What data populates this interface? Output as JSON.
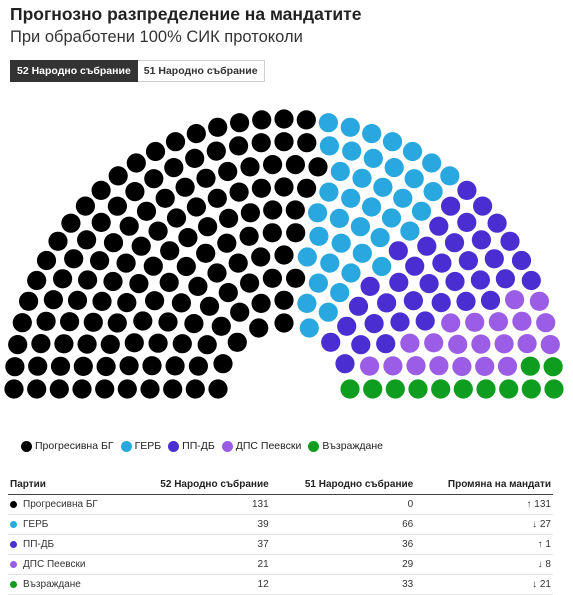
{
  "title": "Прогнозно разпределение на мандатите",
  "subtitle": "При обработени 100% СИК протоколи",
  "tabs": [
    {
      "label": "52 Народно събрание",
      "active": true
    },
    {
      "label": "51 Народно събрание",
      "active": false
    }
  ],
  "table": {
    "headers": [
      "Партии",
      "52 Народно събрание",
      "51 Народно събрание",
      "Промяна на мандати"
    ]
  },
  "chart_data": {
    "type": "hemicycle",
    "total_seats": 240,
    "series": [
      {
        "name": "Прогресивна БГ",
        "color": "#000000",
        "seats_52": 131,
        "seats_51": 0,
        "change": "↑ 131",
        "direction": "up"
      },
      {
        "name": "ГЕРБ",
        "color": "#29a8e0",
        "seats_52": 39,
        "seats_51": 66,
        "change": "↓ 27",
        "direction": "down"
      },
      {
        "name": "ПП-ДБ",
        "color": "#4a2ed1",
        "seats_52": 37,
        "seats_51": 36,
        "change": "↑ 1",
        "direction": "up"
      },
      {
        "name": "ДПС Пеевски",
        "color": "#9b5de5",
        "seats_52": 21,
        "seats_51": 29,
        "change": "↓ 8",
        "direction": "down"
      },
      {
        "name": "Възраждане",
        "color": "#0f9d1f",
        "seats_52": 12,
        "seats_51": 33,
        "change": "↓ 21",
        "direction": "down"
      }
    ]
  }
}
